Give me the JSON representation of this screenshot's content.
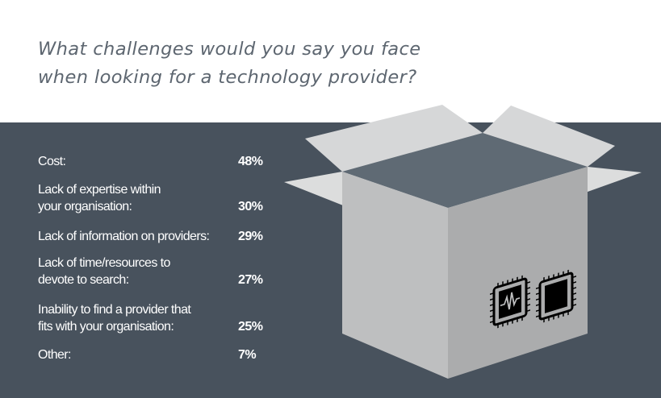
{
  "question": {
    "line1": "What challenges would you say you face",
    "line2": "when looking for a technology provider?"
  },
  "chart_data": {
    "type": "table",
    "title": "What challenges would you say you face when looking for a technology provider?",
    "unit": "%",
    "rows": [
      {
        "label_lines": [
          "Cost:"
        ],
        "label": "Cost:",
        "value": 48,
        "value_label": "48%"
      },
      {
        "label_lines": [
          "Lack of expertise within",
          "your organisation:"
        ],
        "label": "Lack of expertise within your organisation:",
        "value": 30,
        "value_label": "30%"
      },
      {
        "label_lines": [
          "Lack of information on providers:"
        ],
        "label": "Lack of information on providers:",
        "value": 29,
        "value_label": "29%"
      },
      {
        "label_lines": [
          "Lack of time/resources to",
          "devote to search:"
        ],
        "label": "Lack of time/resources to devote to search:",
        "value": 27,
        "value_label": "27%"
      },
      {
        "label_lines": [
          "Inability to find a provider that",
          "fits with your organisation:"
        ],
        "label": "Inability to find a provider that fits with your organisation:",
        "value": 25,
        "value_label": "25%"
      },
      {
        "label_lines": [
          "Other:"
        ],
        "label": "Other:",
        "value": 7,
        "value_label": "7%"
      }
    ]
  },
  "colors": {
    "panel": "#48525d",
    "question_text": "#5d6670",
    "box_front": "#bcbdbe",
    "box_side": "#aaabac",
    "flaps": "#d4d5d6",
    "box_interior": "#5f6a74",
    "chip": "#000000"
  },
  "icons": {
    "chip_left": "cpu-chip-waveform-icon",
    "chip_right": "cpu-chip-icon"
  }
}
